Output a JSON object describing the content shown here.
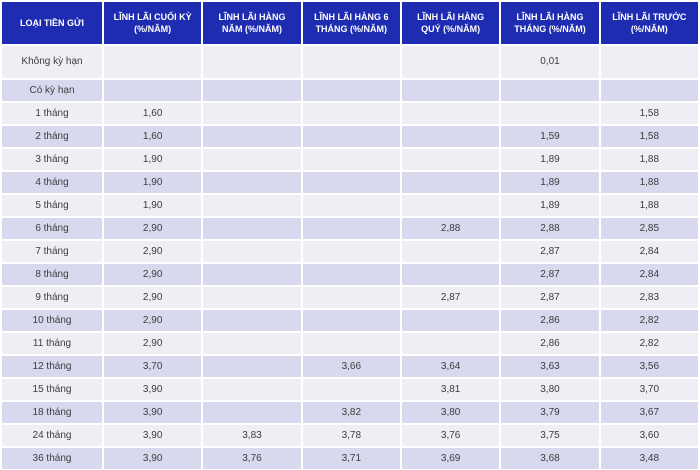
{
  "colors": {
    "header_background": "#1e2cb2",
    "header_text": "#ffffff",
    "row_light_background": "#eeeef4",
    "row_dark_background": "#d8d8ee",
    "cell_text": "#3d3d3d",
    "separator": "#ffffff"
  },
  "table": {
    "columns": [
      {
        "label": "LOẠI TIỀN GỬI"
      },
      {
        "label": "LĨNH LÃI CUỐI KỲ (%/NĂM)"
      },
      {
        "label": "LĨNH LÃI HÀNG NĂM (%/NĂM)"
      },
      {
        "label": "LĨNH LÃI HÀNG 6 THÁNG (%/NĂM)"
      },
      {
        "label": "LĨNH LÃI HÀNG QUÝ (%/NĂM)"
      },
      {
        "label": "LĨNH LÃI HÀNG THÁNG (%/NĂM)"
      },
      {
        "label": "LĨNH LÃI TRƯỚC (%/NĂM)"
      }
    ],
    "rows": [
      {
        "label": "Không kỳ hạn",
        "values": [
          "",
          "",
          "",
          "",
          "0,01",
          ""
        ]
      },
      {
        "label": "Có kỳ hạn",
        "values": [
          "",
          "",
          "",
          "",
          "",
          ""
        ]
      },
      {
        "label": "1 tháng",
        "values": [
          "1,60",
          "",
          "",
          "",
          "",
          "1,58"
        ]
      },
      {
        "label": "2 tháng",
        "values": [
          "1,60",
          "",
          "",
          "",
          "1,59",
          "1,58"
        ]
      },
      {
        "label": "3 tháng",
        "values": [
          "1,90",
          "",
          "",
          "",
          "1,89",
          "1,88"
        ]
      },
      {
        "label": "4 tháng",
        "values": [
          "1,90",
          "",
          "",
          "",
          "1,89",
          "1,88"
        ]
      },
      {
        "label": "5 tháng",
        "values": [
          "1,90",
          "",
          "",
          "",
          "1,89",
          "1,88"
        ]
      },
      {
        "label": "6 tháng",
        "values": [
          "2,90",
          "",
          "",
          "2,88",
          "2,88",
          "2,85"
        ]
      },
      {
        "label": "7 tháng",
        "values": [
          "2,90",
          "",
          "",
          "",
          "2,87",
          "2,84"
        ]
      },
      {
        "label": "8 tháng",
        "values": [
          "2,90",
          "",
          "",
          "",
          "2,87",
          "2,84"
        ]
      },
      {
        "label": "9 tháng",
        "values": [
          "2,90",
          "",
          "",
          "2,87",
          "2,87",
          "2,83"
        ]
      },
      {
        "label": "10 tháng",
        "values": [
          "2,90",
          "",
          "",
          "",
          "2,86",
          "2,82"
        ]
      },
      {
        "label": "11 tháng",
        "values": [
          "2,90",
          "",
          "",
          "",
          "2,86",
          "2,82"
        ]
      },
      {
        "label": "12 tháng",
        "values": [
          "3,70",
          "",
          "3,66",
          "3,64",
          "3,63",
          "3,56"
        ]
      },
      {
        "label": "15 tháng",
        "values": [
          "3,90",
          "",
          "",
          "3,81",
          "3,80",
          "3,70"
        ]
      },
      {
        "label": "18 tháng",
        "values": [
          "3,90",
          "",
          "3,82",
          "3,80",
          "3,79",
          "3,67"
        ]
      },
      {
        "label": "24 tháng",
        "values": [
          "3,90",
          "3,83",
          "3,78",
          "3,76",
          "3,75",
          "3,60"
        ]
      },
      {
        "label": "36 tháng",
        "values": [
          "3,90",
          "3,76",
          "3,71",
          "3,69",
          "3,68",
          "3,48"
        ]
      }
    ]
  }
}
